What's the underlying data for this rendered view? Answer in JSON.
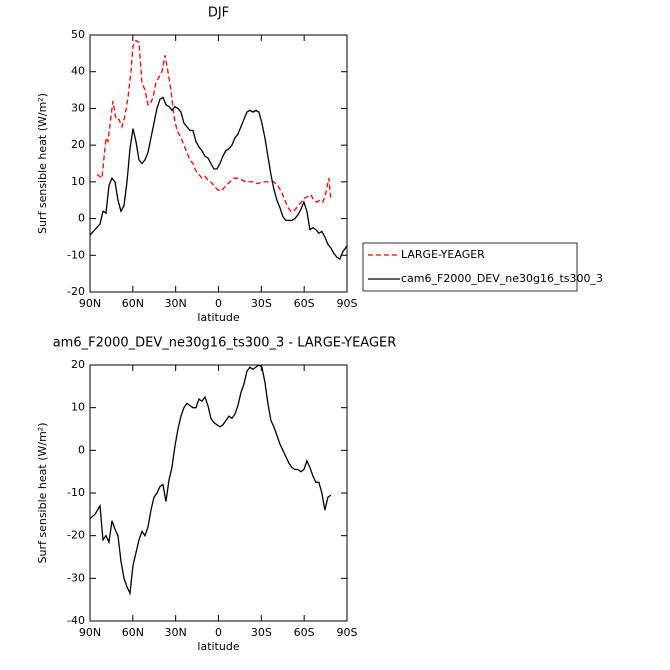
{
  "chart_data": [
    {
      "type": "line",
      "title": "DJF",
      "xlabel": "latitude",
      "ylabel": "Surf sensible heat (W/m²)",
      "xlim": [
        90,
        -90
      ],
      "xticks": [
        {
          "value": 90,
          "label": "90N"
        },
        {
          "value": 60,
          "label": "60N"
        },
        {
          "value": 30,
          "label": "30N"
        },
        0,
        {
          "value": -30,
          "label": "30S"
        },
        {
          "value": -60,
          "label": "60S"
        },
        {
          "value": -90,
          "label": "90S"
        }
      ],
      "ylim": [
        -20,
        50
      ],
      "yticks": [
        -20,
        -10,
        0,
        10,
        20,
        30,
        40,
        50
      ],
      "legend": "right",
      "series": [
        {
          "name": "LARGE-YEAGER",
          "color": "#ff0000",
          "style": "dashed",
          "x": [
            85.1,
            81.6,
            78.8,
            77.4,
            74.6,
            73.9,
            71.8,
            69.7,
            67.6,
            65.5,
            63.4,
            61.3,
            59.9,
            57.8,
            55.7,
            53.6,
            51.5,
            49.4,
            48,
            45.9,
            43.8,
            42.4,
            39.6,
            37.5,
            35.4,
            33.3,
            31.2,
            29.1,
            26.3,
            24.2,
            22.1,
            20,
            17.9,
            15.8,
            13.7,
            11.6,
            9.5,
            7.4,
            5.3,
            3.2,
            1.1,
            -1,
            -3.1,
            -5.2,
            -8,
            -10.8,
            -13.6,
            -16.4,
            -19.2,
            -22,
            -24.8,
            -27.6,
            -30.4,
            -33.2,
            -36,
            -38.8,
            -41.6,
            -44.4,
            -46.5,
            -48.6,
            -50.7,
            -52.8,
            -54.9,
            -57,
            -59.8,
            -62.6,
            -64.7,
            -66.8,
            -68.9,
            -71,
            -73.1,
            -75.2,
            -77.3,
            -78.7
          ],
          "values": [
            12,
            11,
            22,
            21,
            30,
            32,
            27,
            27,
            25,
            28,
            33,
            40,
            47,
            48.5,
            48,
            37,
            35,
            31,
            31,
            33,
            37,
            38,
            40,
            44.5,
            40,
            35,
            28,
            24,
            22,
            20,
            18,
            16,
            15,
            13,
            12,
            11,
            11.5,
            10.5,
            10,
            9,
            8,
            7.5,
            8,
            9,
            10,
            11,
            11,
            10.5,
            10,
            10,
            10,
            9.5,
            10,
            10,
            10,
            10,
            9,
            7,
            5,
            3,
            2,
            2,
            3,
            4,
            5.5,
            6,
            6.5,
            5,
            4.5,
            5,
            4.5,
            7,
            11,
            5
          ]
        },
        {
          "name": "cam6_F2000_DEV_ne30g16_ts300_3",
          "color": "#000000",
          "style": "solid",
          "x": [
            90,
            86.5,
            83,
            80.9,
            78.8,
            76.7,
            74.6,
            72.5,
            70.4,
            68.3,
            66.2,
            64.1,
            62,
            59.9,
            57.8,
            55.7,
            53.6,
            51.5,
            49.4,
            47.3,
            45.2,
            43.1,
            41,
            38.9,
            36.8,
            34.7,
            32.6,
            30.5,
            28.4,
            26.3,
            24.2,
            22.1,
            20,
            17.9,
            15.8,
            13.7,
            11.6,
            9.5,
            7.4,
            5.3,
            3.2,
            1.1,
            -1,
            -3.1,
            -5.2,
            -7.3,
            -9.4,
            -11.5,
            -13.6,
            -15.7,
            -17.8,
            -19.9,
            -22,
            -24.1,
            -26.2,
            -28.3,
            -30.4,
            -32.5,
            -34.6,
            -36.7,
            -38.8,
            -40.9,
            -43,
            -45.1,
            -47.2,
            -49.3,
            -51.4,
            -53.5,
            -55.6,
            -57.7,
            -59.8,
            -61.9,
            -64,
            -66.1,
            -68.2,
            -70.3,
            -72.4,
            -74.5,
            -76.6,
            -78.7,
            -80.8,
            -82.9,
            -85,
            -87.1,
            -89.9
          ],
          "values": [
            -4.5,
            -3,
            -1.5,
            2,
            1.5,
            9,
            11,
            10,
            5,
            2,
            3.5,
            10,
            19,
            24.5,
            21,
            16,
            15,
            16,
            18,
            22,
            26,
            30,
            32.5,
            33,
            31,
            30.5,
            29.5,
            30.5,
            30,
            29,
            26,
            25,
            24,
            24,
            21,
            19.5,
            18.5,
            17,
            16.5,
            15,
            13.5,
            13.5,
            15,
            17,
            18.5,
            19,
            20,
            22,
            23,
            25,
            27,
            29,
            29.5,
            29,
            29.5,
            29,
            26,
            22,
            17,
            12,
            8,
            5,
            3,
            0.5,
            -0.5,
            -0.5,
            -0.5,
            0,
            1,
            2.5,
            4.5,
            2,
            -3,
            -2.5,
            -3,
            -4,
            -3.5,
            -5,
            -7,
            -8,
            -9.5,
            -10.5,
            -11,
            -9,
            -7.5
          ]
        }
      ]
    },
    {
      "type": "line",
      "title": "am6_F2000_DEV_ne30g16_ts300_3 - LARGE-YEAGER",
      "xlabel": "latitude",
      "ylabel": "Surf sensible heat (W/m²)",
      "xlim": [
        90,
        -90
      ],
      "xticks": [
        {
          "value": 90,
          "label": "90N"
        },
        {
          "value": 60,
          "label": "60N"
        },
        {
          "value": 30,
          "label": "30N"
        },
        0,
        {
          "value": -30,
          "label": "30S"
        },
        {
          "value": -60,
          "label": "60S"
        },
        {
          "value": -90,
          "label": "90S"
        }
      ],
      "ylim": [
        -40,
        20
      ],
      "yticks": [
        -40,
        -30,
        -20,
        -10,
        0,
        10,
        20
      ],
      "series": [
        {
          "color": "#000000",
          "style": "solid",
          "x": [
            90,
            86.5,
            83,
            80.9,
            78.8,
            76.7,
            74.6,
            72.5,
            70.4,
            68.3,
            66.2,
            64.1,
            62,
            59.9,
            57.8,
            55.7,
            53.6,
            51.5,
            49.4,
            47.3,
            45.2,
            43.1,
            41,
            38.9,
            36.8,
            34.7,
            32.6,
            30.5,
            28.4,
            26.3,
            24.2,
            22.1,
            20,
            17.9,
            15.8,
            13.7,
            11.6,
            9.5,
            7.4,
            5.3,
            3.2,
            1.1,
            -1,
            -3.1,
            -5.2,
            -7.3,
            -9.4,
            -11.5,
            -13.6,
            -15.7,
            -17.8,
            -19.9,
            -22,
            -24.1,
            -26.2,
            -28.3,
            -30.4,
            -32.5,
            -34.6,
            -36.7,
            -38.8,
            -40.9,
            -43,
            -45.1,
            -47.2,
            -49.3,
            -51.4,
            -53.5,
            -55.6,
            -57.7,
            -59.8,
            -61.9,
            -64,
            -66.1,
            -68.2,
            -70.3,
            -72.4,
            -74.5,
            -76.6,
            -78.7
          ],
          "values": [
            -16,
            -15,
            -13,
            -21,
            -20,
            -21.5,
            -16.5,
            -18.5,
            -20,
            -26,
            -30,
            -32,
            -33.5,
            -27,
            -24,
            -21,
            -19,
            -20,
            -18,
            -14,
            -11,
            -10,
            -8.5,
            -8,
            -12,
            -7,
            -4,
            1,
            5,
            8,
            10,
            11,
            10.5,
            10,
            10,
            12,
            11.5,
            12.5,
            10.5,
            7.5,
            6.5,
            6,
            5.5,
            6,
            7,
            8,
            7.5,
            8.5,
            10.5,
            13.5,
            15.5,
            18.5,
            19.5,
            19,
            19.5,
            20,
            19.5,
            16,
            11,
            7,
            5.5,
            3.5,
            1.5,
            0,
            -1.5,
            -3,
            -4,
            -4.5,
            -4.5,
            -5,
            -4.5,
            -2.5,
            -4,
            -6,
            -7.5,
            -7.5,
            -10,
            -14,
            -11,
            -10.5
          ]
        }
      ]
    }
  ]
}
